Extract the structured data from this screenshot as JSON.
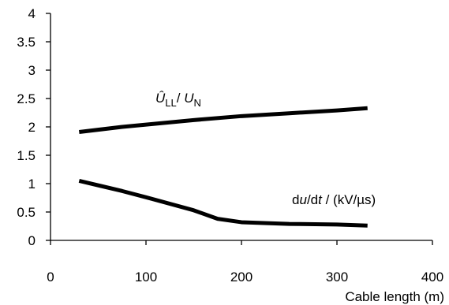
{
  "chart_data": {
    "type": "line",
    "xlabel": "Cable length (m)",
    "ylabel": "",
    "xlim": [
      0,
      400
    ],
    "ylim": [
      0,
      4
    ],
    "x_ticks": [
      0,
      100,
      200,
      300,
      400
    ],
    "y_ticks": [
      0,
      0.5,
      1,
      1.5,
      2,
      2.5,
      3,
      3.5,
      4
    ],
    "x_tick_labels": [
      "0",
      "100",
      "200",
      "300",
      "400"
    ],
    "y_tick_labels": [
      "0",
      "0.5",
      "1",
      "1.5",
      "2",
      "2.5",
      "3",
      "3.5",
      "4"
    ],
    "grid": false,
    "legend": "none",
    "series": [
      {
        "label": {
          "main": "Û",
          "sub": "LL",
          "sep": "/ ",
          "main2": "U",
          "sub2": "N"
        },
        "x": [
          30,
          75,
          100,
          150,
          200,
          250,
          300,
          332
        ],
        "y": [
          1.91,
          2.0,
          2.04,
          2.12,
          2.19,
          2.24,
          2.29,
          2.33
        ]
      },
      {
        "label": {
          "p1": "d",
          "p2": "u",
          "p3": "/d",
          "p4": "t",
          "p5": " / (kV/µs)"
        },
        "x": [
          30,
          75,
          100,
          150,
          175,
          200,
          250,
          300,
          332
        ],
        "y": [
          1.05,
          0.87,
          0.76,
          0.53,
          0.38,
          0.32,
          0.29,
          0.28,
          0.26
        ]
      }
    ]
  }
}
